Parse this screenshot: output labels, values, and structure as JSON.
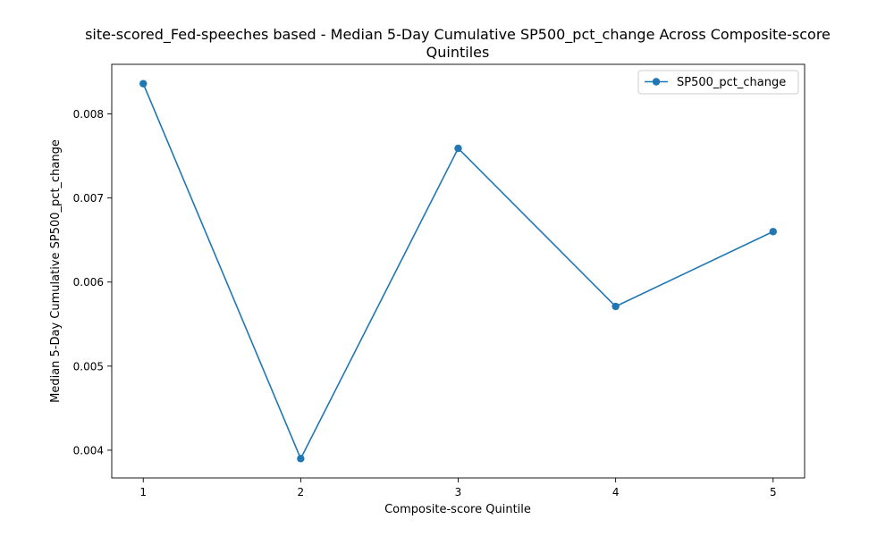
{
  "chart_data": {
    "type": "line",
    "title_lines": [
      "site-scored_Fed-speeches based - Median 5-Day Cumulative SP500_pct_change Across Composite-score",
      "Quintiles"
    ],
    "xlabel": "Composite-score Quintile",
    "ylabel": "Median 5-Day Cumulative SP500_pct_change",
    "x_ticks": [
      "1",
      "2",
      "3",
      "4",
      "5"
    ],
    "y_ticks": [
      "0.004",
      "0.005",
      "0.006",
      "0.007",
      "0.008"
    ],
    "xlim": [
      0.8,
      5.2
    ],
    "ylim": [
      0.00367,
      0.00859
    ],
    "grid": false,
    "legend_position": "top-right",
    "series": [
      {
        "name": "SP500_pct_change",
        "color": "#1f77b4",
        "marker": "circle",
        "x": [
          1,
          2,
          3,
          4,
          5
        ],
        "values": [
          0.00836,
          0.0039,
          0.00759,
          0.00571,
          0.0066
        ]
      }
    ]
  }
}
